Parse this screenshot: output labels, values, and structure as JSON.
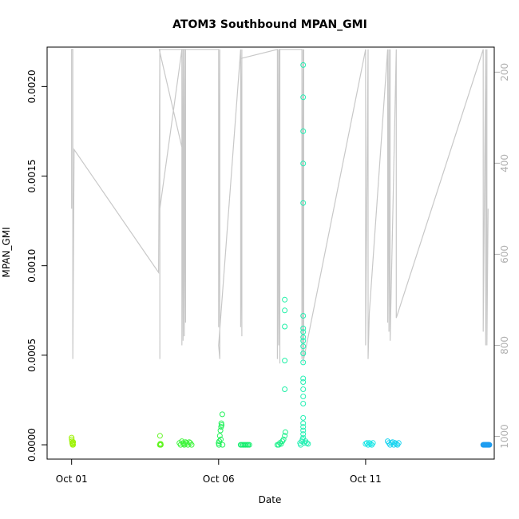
{
  "chart_data": {
    "type": "scatter",
    "title": "ATOM3 Southbound MPAN_GMI",
    "xlabel": "Date",
    "ylabel": "MPAN_GMI",
    "x_ticks": [
      {
        "date": "2016-10-01",
        "label": "Oct 01"
      },
      {
        "date": "2016-10-06",
        "label": "Oct 06"
      },
      {
        "date": "2016-10-11",
        "label": "Oct 11"
      }
    ],
    "xlim": [
      "2016-09-30T04:00",
      "2016-10-15T09:00"
    ],
    "ylim": [
      -8e-05,
      0.00222
    ],
    "y_ticks": [
      {
        "value": 0.0,
        "label": "0.0000"
      },
      {
        "value": 0.0005,
        "label": "0.0005"
      },
      {
        "value": 0.001,
        "label": "0.0010"
      },
      {
        "value": 0.0015,
        "label": "0.0015"
      },
      {
        "value": 0.002,
        "label": "0.0020"
      }
    ],
    "y2": {
      "label": "",
      "ticks": [
        "200",
        "400",
        "600",
        "800",
        "1000"
      ],
      "tick_values": [
        200,
        400,
        600,
        800,
        1000
      ],
      "lim": [
        1050,
        145
      ],
      "color": "#b0b0b0",
      "note_series": "pressure trace"
    },
    "grid": false,
    "legend": "none",
    "series": [
      {
        "color": "#9ff30a",
        "points": [
          [
            "2016-10-01T00:00",
            4e-05
          ],
          [
            "2016-10-01T00:10",
            3e-05
          ],
          [
            "2016-10-01T00:20",
            2e-05
          ],
          [
            "2016-10-01T00:30",
            1e-05
          ],
          [
            "2016-10-01T00:40",
            5e-06
          ],
          [
            "2016-10-01T00:50",
            0.0
          ],
          [
            "2016-10-01T01:00",
            1e-05
          ],
          [
            "2016-10-01T01:10",
            0.0
          ],
          [
            "2016-10-01T01:20",
            1.5e-05
          ]
        ]
      },
      {
        "color": "#62f523",
        "points": [
          [
            "2016-10-04T00:10",
            5e-05
          ],
          [
            "2016-10-04T00:00",
            0.0
          ],
          [
            "2016-10-04T00:20",
            5e-06
          ],
          [
            "2016-10-04T00:30",
            0.0
          ],
          [
            "2016-10-04T00:40",
            5e-06
          ],
          [
            "2016-10-04T00:50",
            0.0
          ]
        ]
      },
      {
        "color": "#3ef53b",
        "points": [
          [
            "2016-10-04T16:00",
            1e-05
          ],
          [
            "2016-10-04T17:00",
            0.0
          ],
          [
            "2016-10-04T18:00",
            2e-05
          ],
          [
            "2016-10-04T19:00",
            1e-05
          ],
          [
            "2016-10-04T20:00",
            0.0
          ],
          [
            "2016-10-04T21:00",
            1.5e-05
          ],
          [
            "2016-10-04T22:00",
            1e-05
          ],
          [
            "2016-10-04T23:00",
            0.0
          ],
          [
            "2016-10-05T00:00",
            1.5e-05
          ],
          [
            "2016-10-05T01:00",
            1e-05
          ],
          [
            "2016-10-05T02:00",
            0.0
          ],
          [
            "2016-10-04T19:30",
            5e-06
          ]
        ]
      },
      {
        "color": "#22f15a",
        "points": [
          [
            "2016-10-06T00:00",
            1e-05
          ],
          [
            "2016-10-06T00:30",
            2e-05
          ],
          [
            "2016-10-06T01:00",
            5e-05
          ],
          [
            "2016-10-06T01:30",
            8e-05
          ],
          [
            "2016-10-06T02:00",
            0.0001
          ],
          [
            "2016-10-06T02:30",
            0.00011
          ],
          [
            "2016-10-06T03:00",
            0.00017
          ],
          [
            "2016-10-06T01:45",
            3e-05
          ],
          [
            "2016-10-06T00:15",
            0.0
          ],
          [
            "2016-10-06T02:15",
            0.00012
          ],
          [
            "2016-10-06T03:10",
            0.0
          ]
        ]
      },
      {
        "color": "#14ee6e",
        "points": [
          [
            "2016-10-06T18:00",
            0.0
          ],
          [
            "2016-10-06T19:00",
            0.0
          ],
          [
            "2016-10-06T20:00",
            0.0
          ],
          [
            "2016-10-06T21:00",
            0.0
          ],
          [
            "2016-10-06T22:00",
            0.0
          ],
          [
            "2016-10-06T23:00",
            0.0
          ],
          [
            "2016-10-07T00:00",
            0.0
          ],
          [
            "2016-10-07T01:00",
            0.0
          ]
        ]
      },
      {
        "color": "#1cf08a",
        "points": [
          [
            "2016-10-08T00:00",
            0.0
          ],
          [
            "2016-10-08T02:00",
            1e-05
          ],
          [
            "2016-10-08T04:00",
            2e-05
          ],
          [
            "2016-10-08T05:00",
            3e-05
          ],
          [
            "2016-10-08T06:00",
            5e-05
          ],
          [
            "2016-10-08T06:30",
            7e-05
          ],
          [
            "2016-10-08T03:00",
            5e-06
          ],
          [
            "2016-10-08T01:00",
            0.0
          ]
        ]
      },
      {
        "color": "#1ef0a6",
        "points": [
          [
            "2016-10-08T06:00",
            0.00081
          ],
          [
            "2016-10-08T06:00",
            0.00075
          ],
          [
            "2016-10-08T06:00",
            0.00066
          ],
          [
            "2016-10-08T06:00",
            0.00047
          ],
          [
            "2016-10-08T06:00",
            0.00031
          ]
        ]
      },
      {
        "color": "#26f0b4",
        "points": [
          [
            "2016-10-08T21:00",
            0.00212
          ],
          [
            "2016-10-08T21:00",
            0.00194
          ],
          [
            "2016-10-08T21:00",
            0.00175
          ],
          [
            "2016-10-08T21:00",
            0.00157
          ],
          [
            "2016-10-08T21:00",
            0.00135
          ],
          [
            "2016-10-08T21:00",
            0.00072
          ],
          [
            "2016-10-08T21:00",
            0.00065
          ],
          [
            "2016-10-08T21:00",
            0.00063
          ],
          [
            "2016-10-08T21:00",
            0.0006
          ],
          [
            "2016-10-08T21:00",
            0.00058
          ],
          [
            "2016-10-08T21:00",
            0.00055
          ],
          [
            "2016-10-08T21:00",
            0.00051
          ],
          [
            "2016-10-08T21:00",
            0.00046
          ],
          [
            "2016-10-08T21:00",
            0.00037
          ],
          [
            "2016-10-08T21:00",
            0.00035
          ],
          [
            "2016-10-08T21:00",
            0.00031
          ],
          [
            "2016-10-08T21:00",
            0.00027
          ],
          [
            "2016-10-08T21:00",
            0.00023
          ],
          [
            "2016-10-08T21:00",
            0.00015
          ],
          [
            "2016-10-08T21:00",
            0.00012
          ],
          [
            "2016-10-08T21:00",
            0.0001
          ],
          [
            "2016-10-08T21:00",
            8e-05
          ],
          [
            "2016-10-08T21:00",
            6e-05
          ],
          [
            "2016-10-08T21:00",
            4e-05
          ],
          [
            "2016-10-08T20:00",
            2e-05
          ],
          [
            "2016-10-08T19:00",
            0.0
          ],
          [
            "2016-10-08T22:00",
            1e-05
          ],
          [
            "2016-10-08T23:00",
            2e-05
          ],
          [
            "2016-10-09T00:00",
            1e-05
          ],
          [
            "2016-10-09T01:00",
            5e-06
          ],
          [
            "2016-10-08T18:30",
            1e-05
          ],
          [
            "2016-10-08T20:30",
            3e-05
          ]
        ]
      },
      {
        "color": "#1ae6e6",
        "points": [
          [
            "2016-10-11T00:00",
            5e-06
          ],
          [
            "2016-10-11T01:00",
            1e-05
          ],
          [
            "2016-10-11T02:00",
            0.0
          ],
          [
            "2016-10-11T03:00",
            1e-05
          ],
          [
            "2016-10-11T04:00",
            5e-06
          ],
          [
            "2016-10-11T05:00",
            0.0
          ],
          [
            "2016-10-11T06:00",
            1e-05
          ]
        ]
      },
      {
        "color": "#1ad4f0",
        "points": [
          [
            "2016-10-11T18:00",
            2e-05
          ],
          [
            "2016-10-11T19:00",
            1e-05
          ],
          [
            "2016-10-11T20:00",
            0.0
          ],
          [
            "2016-10-11T21:00",
            1e-05
          ],
          [
            "2016-10-11T22:00",
            1.5e-05
          ],
          [
            "2016-10-11T23:00",
            0.0
          ],
          [
            "2016-10-12T00:00",
            1e-05
          ],
          [
            "2016-10-12T01:00",
            5e-06
          ],
          [
            "2016-10-12T02:00",
            0.0
          ],
          [
            "2016-10-12T03:00",
            1e-05
          ]
        ]
      },
      {
        "color": "#1c9cf0",
        "points": [
          [
            "2016-10-15T00:00",
            0.0
          ],
          [
            "2016-10-15T00:30",
            0.0
          ],
          [
            "2016-10-15T01:00",
            0.0
          ],
          [
            "2016-10-15T01:30",
            0.0
          ],
          [
            "2016-10-15T02:00",
            0.0
          ],
          [
            "2016-10-15T02:30",
            0.0
          ],
          [
            "2016-10-15T03:00",
            0.0
          ],
          [
            "2016-10-15T03:30",
            0.0
          ],
          [
            "2016-10-15T04:00",
            0.0
          ],
          [
            "2016-10-15T04:30",
            0.0
          ],
          [
            "2016-10-15T05:00",
            0.0
          ]
        ]
      }
    ],
    "pressure_trace": {
      "color": "#c8c8c8",
      "units_axis": "y2",
      "points": [
        [
          "2016-10-01T00:00",
          150
        ],
        [
          "2016-10-01T00:00",
          500
        ],
        [
          "2016-10-01T00:00",
          150
        ],
        [
          "2016-10-01T01:00",
          150
        ],
        [
          "2016-10-01T01:00",
          830
        ],
        [
          "2016-10-01T02:00",
          370
        ],
        [
          "2016-10-03T23:00",
          640
        ],
        [
          "2016-10-04T00:00",
          150
        ],
        [
          "2016-10-04T00:00",
          830
        ],
        [
          "2016-10-04T00:00",
          500
        ],
        [
          "2016-10-04T18:00",
          150
        ],
        [
          "2016-10-04T18:00",
          800
        ],
        [
          "2016-10-04T19:00",
          150
        ],
        [
          "2016-10-04T19:00",
          790
        ],
        [
          "2016-10-04T20:00",
          150
        ],
        [
          "2016-10-04T20:00",
          780
        ],
        [
          "2016-10-04T21:00",
          150
        ],
        [
          "2016-10-04T21:00",
          750
        ],
        [
          "2016-10-04T21:00",
          400
        ],
        [
          "2016-10-03T23:30",
          150
        ],
        [
          "2016-10-06T00:00",
          150
        ],
        [
          "2016-10-06T00:00",
          760
        ],
        [
          "2016-10-06T01:00",
          150
        ],
        [
          "2016-10-06T01:00",
          830
        ],
        [
          "2016-10-06T00:00",
          800
        ],
        [
          "2016-10-06T18:00",
          150
        ],
        [
          "2016-10-06T18:00",
          760
        ],
        [
          "2016-10-06T19:00",
          150
        ],
        [
          "2016-10-06T19:00",
          780
        ],
        [
          "2016-10-06T18:00",
          170
        ],
        [
          "2016-10-08T00:00",
          150
        ],
        [
          "2016-10-08T00:00",
          830
        ],
        [
          "2016-10-08T01:00",
          150
        ],
        [
          "2016-10-08T01:00",
          800
        ],
        [
          "2016-10-08T02:00",
          150
        ],
        [
          "2016-10-08T02:00",
          840
        ],
        [
          "2016-10-08T01:30",
          150
        ],
        [
          "2016-10-08T20:00",
          150
        ],
        [
          "2016-10-08T20:00",
          830
        ],
        [
          "2016-10-08T21:00",
          150
        ],
        [
          "2016-10-08T21:00",
          840
        ],
        [
          "2016-10-08T21:30",
          150
        ],
        [
          "2016-10-08T21:30",
          830
        ],
        [
          "2016-10-11T00:00",
          150
        ],
        [
          "2016-10-11T00:00",
          800
        ],
        [
          "2016-10-11T02:00",
          150
        ],
        [
          "2016-10-11T02:00",
          830
        ],
        [
          "2016-10-11T03:00",
          730
        ],
        [
          "2016-10-11T18:00",
          150
        ],
        [
          "2016-10-11T18:00",
          750
        ],
        [
          "2016-10-11T19:00",
          150
        ],
        [
          "2016-10-11T19:00",
          770
        ],
        [
          "2016-10-11T20:00",
          150
        ],
        [
          "2016-10-11T20:00",
          790
        ],
        [
          "2016-10-12T01:00",
          150
        ],
        [
          "2016-10-12T01:00",
          740
        ],
        [
          "2016-10-15T00:00",
          150
        ],
        [
          "2016-10-15T00:00",
          770
        ],
        [
          "2016-10-15T02:00",
          150
        ],
        [
          "2016-10-15T02:00",
          800
        ],
        [
          "2016-10-15T03:00",
          150
        ],
        [
          "2016-10-15T03:00",
          800
        ],
        [
          "2016-10-15T04:00",
          500
        ]
      ]
    }
  }
}
